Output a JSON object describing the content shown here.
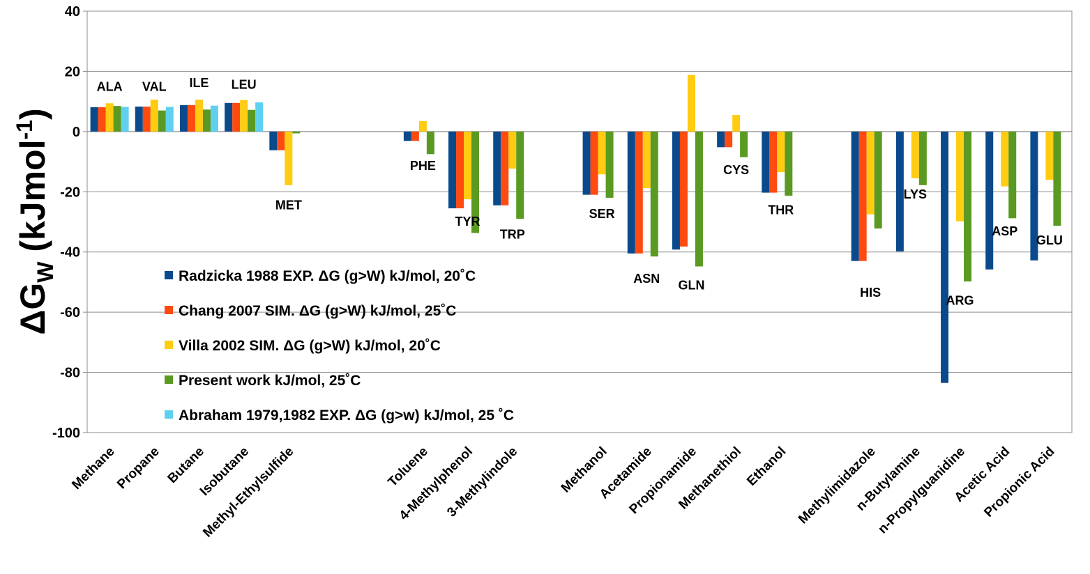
{
  "chart_data": {
    "type": "bar",
    "ylabel_main": "ΔG",
    "ylabel_sub": "W",
    "ylabel_rest": " (kJmol",
    "ylabel_sup": "-1",
    "ylabel_close": ")",
    "ylim": [
      -100,
      40
    ],
    "yticks": [
      40,
      20,
      0,
      -20,
      -40,
      -60,
      -80,
      -100
    ],
    "grid": true,
    "categories": [
      "Methane",
      "Propane",
      "Butane",
      "Isobutane",
      "Methyl-Ethylsulfide",
      "",
      "",
      "Toluene",
      "4-Methylphenol",
      "3-Methylindole",
      "",
      "Methanol",
      "Acetamide",
      "Propionamide",
      "Methanethiol",
      "Ethanol",
      "",
      "Methylimidazole",
      "n-Butylamine",
      "n-Propylguanidine",
      "Acetic Acid",
      "Propionic Acid"
    ],
    "series": [
      {
        "name": "Radzicka 1988 EXP. ΔG (g>W) kJ/mol, 20˚C",
        "color": "#0a4a8c",
        "values": [
          8.1,
          8.3,
          8.8,
          9.5,
          -6.2,
          null,
          null,
          -3.1,
          -25.5,
          -24.5,
          null,
          -21,
          -40.5,
          -39.2,
          -5.2,
          -20.3,
          null,
          -43,
          -39.8,
          -83.5,
          -45.8,
          -42.8
        ]
      },
      {
        "name": "Chang 2007 SIM. ΔG (g>W) kJ/mol, 25˚C",
        "color": "#ff4a10",
        "values": [
          8.1,
          8.3,
          8.8,
          9.5,
          -6.2,
          null,
          null,
          -3.1,
          -25.5,
          -24.5,
          null,
          -21,
          -40.5,
          -38.2,
          -5.2,
          -20.3,
          null,
          -43,
          null,
          null,
          null,
          null
        ]
      },
      {
        "name": "Villa 2002 SIM. ΔG (g>W) kJ/mol, 20˚C",
        "color": "#ffcc11",
        "values": [
          9.4,
          10.6,
          10.6,
          10.5,
          -17.8,
          null,
          null,
          3.5,
          -22.5,
          -12.3,
          null,
          -14.2,
          -18.8,
          18.8,
          5.5,
          -13.5,
          null,
          -27.5,
          -15.5,
          -29.8,
          -18.2,
          -16
        ]
      },
      {
        "name": "Present work kJ/mol, 25˚C",
        "color": "#5a9a22",
        "values": [
          8.5,
          7,
          7.3,
          7.2,
          -0.6,
          null,
          null,
          -7.5,
          -33.7,
          -29,
          null,
          -22,
          -41.5,
          -44.8,
          -8.5,
          -21.3,
          null,
          -32.2,
          -17.8,
          -49.8,
          -28.8,
          -31.3
        ]
      },
      {
        "name": "Abraham 1979,1982 EXP. ΔG (g>w) kJ/mol, 25 ˚C",
        "color": "#5fd0f0",
        "values": [
          8.2,
          8.2,
          8.6,
          9.7,
          null,
          null,
          null,
          null,
          null,
          null,
          null,
          null,
          null,
          null,
          null,
          null,
          null,
          null,
          null,
          null,
          null,
          null
        ]
      }
    ],
    "annotations": [
      {
        "text": "ALA",
        "category": 0,
        "value": 13.5
      },
      {
        "text": "VAL",
        "category": 1,
        "value": 13.5
      },
      {
        "text": "ILE",
        "category": 2,
        "value": 14.8
      },
      {
        "text": "LEU",
        "category": 3,
        "value": 14.2
      },
      {
        "text": "MET",
        "category": 4,
        "value": -25.8
      },
      {
        "text": "PHE",
        "category": 7,
        "value": -12.8
      },
      {
        "text": "TYR",
        "category": 8,
        "value": -31.3
      },
      {
        "text": "TRP",
        "category": 9,
        "value": -35.5
      },
      {
        "text": "SER",
        "category": 11,
        "value": -28.7
      },
      {
        "text": "ASN",
        "category": 12,
        "value": -50.3
      },
      {
        "text": "GLN",
        "category": 13,
        "value": -52.5
      },
      {
        "text": "CYS",
        "category": 14,
        "value": -14.1
      },
      {
        "text": "THR",
        "category": 15,
        "value": -27.5
      },
      {
        "text": "HIS",
        "category": 17,
        "value": -54.9
      },
      {
        "text": "LYS",
        "category": 18,
        "value": -22.3
      },
      {
        "text": "ARG",
        "category": 19,
        "value": -57.5
      },
      {
        "text": "ASP",
        "category": 20,
        "value": -34.5
      },
      {
        "text": "GLU",
        "category": 21,
        "value": -37.5
      }
    ]
  }
}
